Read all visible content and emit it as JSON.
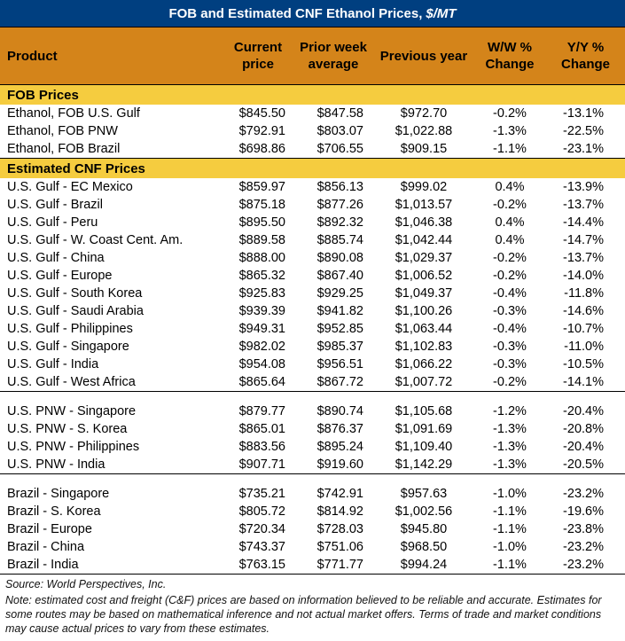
{
  "title": {
    "main": "FOB and Estimated CNF Ethanol Prices,",
    "unit": "$/MT"
  },
  "headers": [
    "Product",
    "Current price",
    "Prior week average",
    "Previous year",
    "W/W % Change",
    "Y/Y % Change"
  ],
  "sections": [
    {
      "label": "FOB Prices",
      "groups": [
        [
          [
            "Ethanol, FOB U.S. Gulf",
            "$845.50",
            "$847.58",
            "$972.70",
            "-0.2%",
            "-13.1%"
          ],
          [
            "Ethanol, FOB PNW",
            "$792.91",
            "$803.07",
            "$1,022.88",
            "-1.3%",
            "-22.5%"
          ],
          [
            "Ethanol, FOB Brazil",
            "$698.86",
            "$706.55",
            "$909.15",
            "-1.1%",
            "-23.1%"
          ]
        ]
      ]
    },
    {
      "label": "Estimated CNF Prices",
      "groups": [
        [
          [
            "U.S. Gulf - EC Mexico",
            "$859.97",
            "$856.13",
            "$999.02",
            "0.4%",
            "-13.9%"
          ],
          [
            "U.S. Gulf - Brazil",
            "$875.18",
            "$877.26",
            "$1,013.57",
            "-0.2%",
            "-13.7%"
          ],
          [
            "U.S. Gulf - Peru",
            "$895.50",
            "$892.32",
            "$1,046.38",
            "0.4%",
            "-14.4%"
          ],
          [
            "U.S. Gulf - W. Coast Cent. Am.",
            "$889.58",
            "$885.74",
            "$1,042.44",
            "0.4%",
            "-14.7%"
          ],
          [
            "U.S. Gulf - China",
            "$888.00",
            "$890.08",
            "$1,029.37",
            "-0.2%",
            "-13.7%"
          ],
          [
            "U.S. Gulf - Europe",
            "$865.32",
            "$867.40",
            "$1,006.52",
            "-0.2%",
            "-14.0%"
          ],
          [
            "U.S. Gulf - South Korea",
            "$925.83",
            "$929.25",
            "$1,049.37",
            "-0.4%",
            "-11.8%"
          ],
          [
            "U.S. Gulf - Saudi Arabia",
            "$939.39",
            "$941.82",
            "$1,100.26",
            "-0.3%",
            "-14.6%"
          ],
          [
            "U.S. Gulf - Philippines",
            "$949.31",
            "$952.85",
            "$1,063.44",
            "-0.4%",
            "-10.7%"
          ],
          [
            "U.S. Gulf - Singapore",
            "$982.02",
            "$985.37",
            "$1,102.83",
            "-0.3%",
            "-11.0%"
          ],
          [
            "U.S. Gulf - India",
            "$954.08",
            "$956.51",
            "$1,066.22",
            "-0.3%",
            "-10.5%"
          ],
          [
            "U.S. Gulf - West Africa",
            "$865.64",
            "$867.72",
            "$1,007.72",
            "-0.2%",
            "-14.1%"
          ]
        ],
        [
          [
            "U.S. PNW - Singapore",
            "$879.77",
            "$890.74",
            "$1,105.68",
            "-1.2%",
            "-20.4%"
          ],
          [
            "U.S. PNW - S. Korea",
            "$865.01",
            "$876.37",
            "$1,091.69",
            "-1.3%",
            "-20.8%"
          ],
          [
            "U.S. PNW - Philippines",
            "$883.56",
            "$895.24",
            "$1,109.40",
            "-1.3%",
            "-20.4%"
          ],
          [
            "U.S. PNW - India",
            "$907.71",
            "$919.60",
            "$1,142.29",
            "-1.3%",
            "-20.5%"
          ]
        ],
        [
          [
            "Brazil - Singapore",
            "$735.21",
            "$742.91",
            "$957.63",
            "-1.0%",
            "-23.2%"
          ],
          [
            "Brazil - S. Korea",
            "$805.72",
            "$814.92",
            "$1,002.56",
            "-1.1%",
            "-19.6%"
          ],
          [
            "Brazil - Europe",
            "$720.34",
            "$728.03",
            "$945.80",
            "-1.1%",
            "-23.8%"
          ],
          [
            "Brazil - China",
            "$743.37",
            "$751.06",
            "$968.50",
            "-1.0%",
            "-23.2%"
          ],
          [
            "Brazil - India",
            "$763.15",
            "$771.77",
            "$994.24",
            "-1.1%",
            "-23.2%"
          ]
        ]
      ]
    }
  ],
  "footer": {
    "source": "Source: World Perspectives, Inc.",
    "note": "Note: estimated cost and freight (C&F) prices are based on information believed to be reliable and accurate. Estimates for some routes may be based on mathematical inference and not actual market offers. Terms of trade and market conditions may cause actual prices to vary from these estimates."
  },
  "colors": {
    "title_bg": "#003f80",
    "header_bg": "#d4841a",
    "band_bg": "#f5cc3f"
  }
}
